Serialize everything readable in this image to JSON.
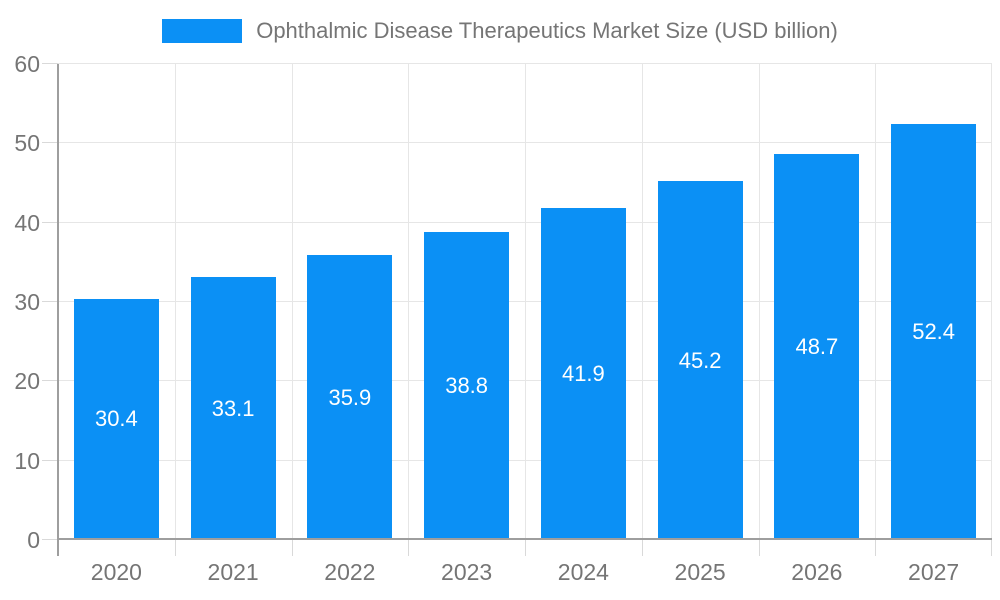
{
  "chart_data": {
    "type": "bar",
    "title": "Ophthalmic Disease Therapeutics Market Size (USD billion)",
    "categories": [
      "2020",
      "2021",
      "2022",
      "2023",
      "2024",
      "2025",
      "2026",
      "2027"
    ],
    "values": [
      30.4,
      33.1,
      35.9,
      38.8,
      41.9,
      45.2,
      48.7,
      52.4
    ],
    "value_labels": [
      "30.4",
      "33.1",
      "35.9",
      "38.8",
      "41.9",
      "45.2",
      "48.7",
      "52.4"
    ],
    "ytick_labels": [
      "0",
      "10",
      "20",
      "30",
      "40",
      "50",
      "60"
    ],
    "ylim": [
      0,
      60
    ],
    "ytick_step": 10,
    "grid": true,
    "legend_position": "top-center",
    "colors": {
      "bar": "#0b90f5",
      "value_label": "#ffffff",
      "axis_text": "#757575",
      "grid": "#e6e6e6",
      "axis_line": "#9e9e9e",
      "tick": "#d9d9d9",
      "background": "#ffffff"
    }
  }
}
